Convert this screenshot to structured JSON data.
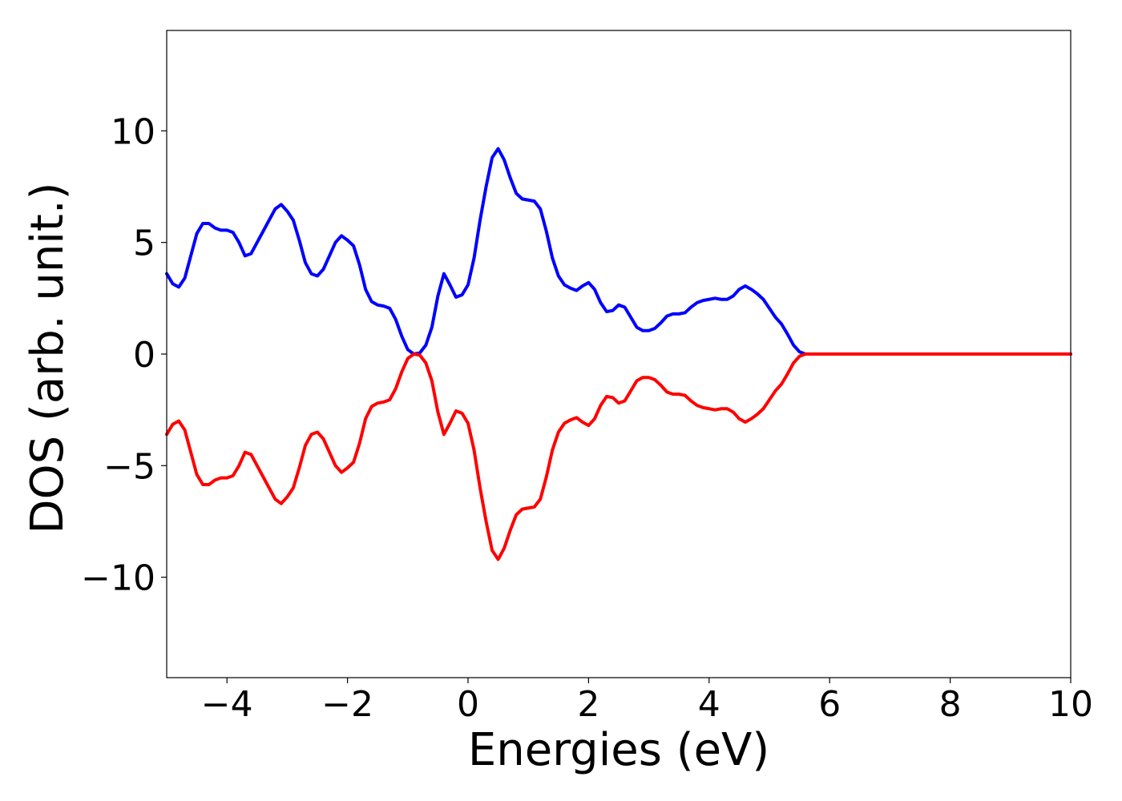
{
  "chart_data": {
    "type": "line",
    "title": "",
    "xlabel": "Energies (eV)",
    "ylabel": "DOS (arb. unit.)",
    "xlim": [
      -5,
      10
    ],
    "ylim": [
      -14.5,
      14.5
    ],
    "xticks": [
      -4,
      -2,
      0,
      2,
      4,
      6,
      8,
      10
    ],
    "xtick_labels": [
      "−4",
      "−2",
      "0",
      "2",
      "4",
      "6",
      "8",
      "10"
    ],
    "yticks": [
      -10,
      -5,
      0,
      5,
      10
    ],
    "ytick_labels": [
      "−10",
      "−5",
      "0",
      "5",
      "10"
    ],
    "grid": false,
    "legend": "none",
    "series": [
      {
        "color": "#0000ff",
        "x": [
          -5.0,
          -4.9,
          -4.8,
          -4.7,
          -4.6,
          -4.5,
          -4.4,
          -4.3,
          -4.2,
          -4.1,
          -4.0,
          -3.9,
          -3.8,
          -3.7,
          -3.6,
          -3.5,
          -3.4,
          -3.3,
          -3.2,
          -3.1,
          -3.0,
          -2.9,
          -2.8,
          -2.7,
          -2.6,
          -2.5,
          -2.4,
          -2.3,
          -2.2,
          -2.1,
          -2.0,
          -1.9,
          -1.8,
          -1.7,
          -1.6,
          -1.5,
          -1.4,
          -1.3,
          -1.2,
          -1.1,
          -1.0,
          -0.9,
          -0.8,
          -0.7,
          -0.6,
          -0.5,
          -0.4,
          -0.3,
          -0.2,
          -0.1,
          0.0,
          0.1,
          0.2,
          0.3,
          0.4,
          0.5,
          0.6,
          0.7,
          0.8,
          0.9,
          1.0,
          1.1,
          1.2,
          1.3,
          1.4,
          1.5,
          1.6,
          1.7,
          1.8,
          1.9,
          2.0,
          2.1,
          2.2,
          2.3,
          2.4,
          2.5,
          2.6,
          2.7,
          2.8,
          2.9,
          3.0,
          3.1,
          3.2,
          3.3,
          3.4,
          3.5,
          3.6,
          3.7,
          3.8,
          3.9,
          4.0,
          4.1,
          4.2,
          4.3,
          4.4,
          4.5,
          4.6,
          4.7,
          4.8,
          4.9,
          5.0,
          5.1,
          5.2,
          5.3,
          5.4,
          5.5,
          5.6,
          5.7,
          5.8,
          5.9,
          6.0,
          6.1,
          6.2,
          6.3,
          6.4,
          6.5,
          6.6,
          6.7,
          6.8,
          6.9,
          7.0,
          7.2,
          7.4,
          7.6,
          7.8,
          8.0,
          8.2,
          8.5,
          9.0,
          9.5,
          10.0
        ],
        "y": [
          3.6,
          3.15,
          3.0,
          3.4,
          4.4,
          5.4,
          5.85,
          5.85,
          5.65,
          5.55,
          5.55,
          5.45,
          5.0,
          4.4,
          4.5,
          5.0,
          5.5,
          6.0,
          6.5,
          6.7,
          6.4,
          6.0,
          5.1,
          4.1,
          3.6,
          3.5,
          3.8,
          4.4,
          5.0,
          5.3,
          5.1,
          4.85,
          4.0,
          2.9,
          2.35,
          2.2,
          2.15,
          2.05,
          1.55,
          0.8,
          0.2,
          0.0,
          0.05,
          0.4,
          1.2,
          2.6,
          3.6,
          3.1,
          2.55,
          2.65,
          3.1,
          4.3,
          6.0,
          7.5,
          8.8,
          9.2,
          8.7,
          7.9,
          7.2,
          6.95,
          6.9,
          6.85,
          6.5,
          5.5,
          4.3,
          3.5,
          3.1,
          2.95,
          2.85,
          3.05,
          3.2,
          2.9,
          2.3,
          1.9,
          1.95,
          2.2,
          2.1,
          1.65,
          1.2,
          1.05,
          1.05,
          1.15,
          1.4,
          1.7,
          1.8,
          1.8,
          1.85,
          2.1,
          2.3,
          2.4,
          2.45,
          2.5,
          2.45,
          2.45,
          2.6,
          2.9,
          3.05,
          2.9,
          2.7,
          2.45,
          2.05,
          1.65,
          1.35,
          0.9,
          0.4,
          0.1,
          0.0,
          0.0,
          0.0,
          0.0,
          0.0,
          0.0,
          0.0,
          0.0,
          0.0,
          0.0,
          0.0,
          0.0,
          0.0,
          0.0,
          0.0,
          0.0,
          0.0,
          0.0,
          0.0,
          0.0,
          0.0,
          0.0,
          0.0,
          0.0,
          0.0
        ]
      },
      {
        "color": "#ff0000",
        "x": [
          -5.0,
          -4.9,
          -4.8,
          -4.7,
          -4.6,
          -4.5,
          -4.4,
          -4.3,
          -4.2,
          -4.1,
          -4.0,
          -3.9,
          -3.8,
          -3.7,
          -3.6,
          -3.5,
          -3.4,
          -3.3,
          -3.2,
          -3.1,
          -3.0,
          -2.9,
          -2.8,
          -2.7,
          -2.6,
          -2.5,
          -2.4,
          -2.3,
          -2.2,
          -2.1,
          -2.0,
          -1.9,
          -1.8,
          -1.7,
          -1.6,
          -1.5,
          -1.4,
          -1.3,
          -1.2,
          -1.1,
          -1.0,
          -0.9,
          -0.8,
          -0.7,
          -0.6,
          -0.5,
          -0.4,
          -0.3,
          -0.2,
          -0.1,
          0.0,
          0.1,
          0.2,
          0.3,
          0.4,
          0.5,
          0.6,
          0.7,
          0.8,
          0.9,
          1.0,
          1.1,
          1.2,
          1.3,
          1.4,
          1.5,
          1.6,
          1.7,
          1.8,
          1.9,
          2.0,
          2.1,
          2.2,
          2.3,
          2.4,
          2.5,
          2.6,
          2.7,
          2.8,
          2.9,
          3.0,
          3.1,
          3.2,
          3.3,
          3.4,
          3.5,
          3.6,
          3.7,
          3.8,
          3.9,
          4.0,
          4.1,
          4.2,
          4.3,
          4.4,
          4.5,
          4.6,
          4.7,
          4.8,
          4.9,
          5.0,
          5.1,
          5.2,
          5.3,
          5.4,
          5.5,
          5.6,
          5.7,
          5.8,
          5.9,
          6.0,
          6.1,
          6.2,
          6.3,
          6.4,
          6.5,
          6.6,
          6.7,
          6.8,
          6.9,
          7.0,
          7.2,
          7.4,
          7.6,
          7.8,
          8.0,
          8.2,
          8.5,
          9.0,
          9.5,
          10.0
        ],
        "y": [
          -3.6,
          -3.15,
          -3.0,
          -3.4,
          -4.4,
          -5.4,
          -5.85,
          -5.85,
          -5.65,
          -5.55,
          -5.55,
          -5.45,
          -5.0,
          -4.4,
          -4.5,
          -5.0,
          -5.5,
          -6.0,
          -6.5,
          -6.7,
          -6.4,
          -6.0,
          -5.1,
          -4.1,
          -3.6,
          -3.5,
          -3.8,
          -4.4,
          -5.0,
          -5.3,
          -5.1,
          -4.85,
          -4.0,
          -2.9,
          -2.35,
          -2.2,
          -2.15,
          -2.05,
          -1.55,
          -0.8,
          -0.2,
          0.0,
          -0.05,
          -0.4,
          -1.2,
          -2.6,
          -3.6,
          -3.1,
          -2.55,
          -2.65,
          -3.1,
          -4.3,
          -6.0,
          -7.5,
          -8.8,
          -9.2,
          -8.7,
          -7.9,
          -7.2,
          -6.95,
          -6.9,
          -6.85,
          -6.5,
          -5.5,
          -4.3,
          -3.5,
          -3.1,
          -2.95,
          -2.85,
          -3.05,
          -3.2,
          -2.9,
          -2.3,
          -1.9,
          -1.95,
          -2.2,
          -2.1,
          -1.65,
          -1.2,
          -1.05,
          -1.05,
          -1.15,
          -1.4,
          -1.7,
          -1.8,
          -1.8,
          -1.85,
          -2.1,
          -2.3,
          -2.4,
          -2.45,
          -2.5,
          -2.45,
          -2.45,
          -2.6,
          -2.9,
          -3.05,
          -2.9,
          -2.7,
          -2.45,
          -2.05,
          -1.65,
          -1.35,
          -0.9,
          -0.4,
          -0.1,
          0.0,
          0.0,
          0.0,
          0.0,
          0.0,
          0.0,
          0.0,
          0.0,
          0.0,
          0.0,
          0.0,
          0.0,
          0.0,
          0.0,
          0.0,
          0.0,
          0.0,
          0.0,
          0.0,
          0.0,
          0.0,
          0.0,
          0.0,
          0.0,
          0.0
        ]
      }
    ]
  }
}
